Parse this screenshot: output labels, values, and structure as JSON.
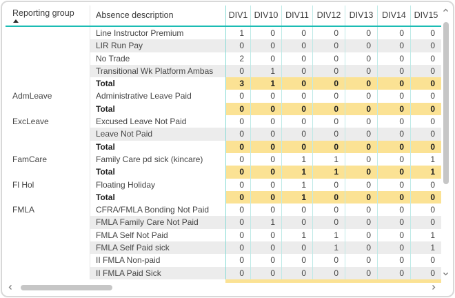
{
  "table": {
    "header": {
      "group_column": "Reporting group",
      "desc_column": "Absence description",
      "value_columns": [
        "DIV1",
        "DIV10",
        "DIV11",
        "DIV12",
        "DIV13",
        "DIV14",
        "DIV15"
      ],
      "sort": {
        "column": "Reporting group",
        "direction": "ascending"
      }
    },
    "rows": [
      {
        "group": "",
        "label": "Line Instructor Premium",
        "values": [
          1,
          0,
          0,
          0,
          0,
          0,
          0
        ],
        "band": "white"
      },
      {
        "group": "",
        "label": "LIR Run Pay",
        "values": [
          0,
          0,
          0,
          0,
          0,
          0,
          0
        ],
        "band": "gray"
      },
      {
        "group": "",
        "label": "No Trade",
        "values": [
          2,
          0,
          0,
          0,
          0,
          0,
          0
        ],
        "band": "white"
      },
      {
        "group": "",
        "label": "Transitional Wk Platform Ambas",
        "values": [
          0,
          1,
          0,
          0,
          0,
          0,
          0
        ],
        "band": "gray"
      },
      {
        "group": "",
        "label": "Total",
        "values": [
          3,
          1,
          0,
          0,
          0,
          0,
          0
        ],
        "total": true
      },
      {
        "group": "AdmLeave",
        "label": "Administrative Leave Paid",
        "values": [
          0,
          0,
          0,
          0,
          0,
          0,
          0
        ],
        "band": "white"
      },
      {
        "group": "",
        "label": "Total",
        "values": [
          0,
          0,
          0,
          0,
          0,
          0,
          0
        ],
        "total": true
      },
      {
        "group": "ExcLeave",
        "label": "Excused Leave Not Paid",
        "values": [
          0,
          0,
          0,
          0,
          0,
          0,
          0
        ],
        "band": "white"
      },
      {
        "group": "",
        "label": "Leave Not Paid",
        "values": [
          0,
          0,
          0,
          0,
          0,
          0,
          0
        ],
        "band": "gray"
      },
      {
        "group": "",
        "label": "Total",
        "values": [
          0,
          0,
          0,
          0,
          0,
          0,
          0
        ],
        "total": true
      },
      {
        "group": "FamCare",
        "label": "Family Care pd sick (kincare)",
        "values": [
          0,
          0,
          1,
          1,
          0,
          0,
          1
        ],
        "band": "white"
      },
      {
        "group": "",
        "label": "Total",
        "values": [
          0,
          0,
          1,
          1,
          0,
          0,
          1
        ],
        "total": true
      },
      {
        "group": "Fl Hol",
        "label": "Floating Holiday",
        "values": [
          0,
          0,
          1,
          0,
          0,
          0,
          0
        ],
        "band": "white"
      },
      {
        "group": "",
        "label": "Total",
        "values": [
          0,
          0,
          1,
          0,
          0,
          0,
          0
        ],
        "total": true
      },
      {
        "group": "FMLA",
        "label": "CFRA/FMLA Bonding Not Paid",
        "values": [
          0,
          0,
          0,
          0,
          0,
          0,
          0
        ],
        "band": "white"
      },
      {
        "group": "",
        "label": "FMLA Family Care Not Paid",
        "values": [
          0,
          1,
          0,
          0,
          0,
          0,
          0
        ],
        "band": "gray"
      },
      {
        "group": "",
        "label": "FMLA Self Not Paid",
        "values": [
          0,
          0,
          1,
          1,
          0,
          0,
          1
        ],
        "band": "white"
      },
      {
        "group": "",
        "label": "FMLA Self Paid sick",
        "values": [
          0,
          0,
          0,
          1,
          0,
          0,
          1
        ],
        "band": "gray"
      },
      {
        "group": "",
        "label": "II FMLA Non-paid",
        "values": [
          0,
          0,
          0,
          0,
          0,
          0,
          0
        ],
        "band": "white"
      },
      {
        "group": "",
        "label": "II FMLA Paid Sick",
        "values": [
          0,
          0,
          0,
          0,
          0,
          0,
          0
        ],
        "band": "gray"
      }
    ],
    "partial_total_row_visible": true
  },
  "icons": {
    "sort_indicator": "triangle-up",
    "scroll_up": "chevron-up",
    "scroll_down": "chevron-down",
    "scroll_left": "chevron-left",
    "scroll_right": "chevron-right"
  },
  "colors": {
    "accent_teal": "#1CBCB4",
    "grid_teal": "#BFEAE7",
    "grid_teal_strong": "#8ADCD6",
    "total_highlight": "#FBE294",
    "alt_row": "#ECECEC",
    "scrollbar_thumb": "#C6C6C6",
    "window_border": "#D8D8D8",
    "header_text": "#3C3C3C",
    "total_text": "#1E1E1E"
  }
}
